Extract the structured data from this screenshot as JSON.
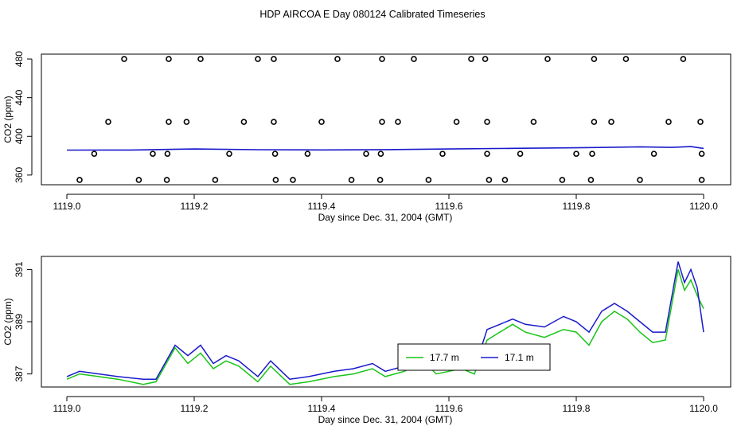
{
  "figure": {
    "title": "HDP AIRCOA E  Day 080124  Calibrated Timeseries"
  },
  "chart_data": [
    {
      "type": "scatter",
      "xlabel": "Day since Dec. 31, 2004 (GMT)",
      "ylabel": "CO2 (ppm)",
      "xlim": [
        1119.0,
        1120.0
      ],
      "ylim": [
        350,
        485
      ],
      "xticks": [
        "1119.0",
        "1119.2",
        "1119.4",
        "1119.6",
        "1119.8",
        "1120.0"
      ],
      "yticks": [
        "360",
        "400",
        "440",
        "480"
      ],
      "colors": {
        "line": "#1a1acc",
        "points": "#000000"
      },
      "series": [
        {
          "style": "points",
          "x": [
            1119.09,
            1119.16,
            1119.21,
            1119.3,
            1119.325,
            1119.425,
            1119.495,
            1119.545,
            1119.635,
            1119.657,
            1119.755,
            1119.828,
            1119.878,
            1119.968,
            1119.065,
            1119.16,
            1119.188,
            1119.278,
            1119.325,
            1119.4,
            1119.495,
            1119.52,
            1119.612,
            1119.66,
            1119.733,
            1119.828,
            1119.855,
            1119.945,
            1119.995,
            1119.043,
            1119.135,
            1119.158,
            1119.255,
            1119.327,
            1119.378,
            1119.47,
            1119.493,
            1119.59,
            1119.66,
            1119.712,
            1119.8,
            1119.825,
            1119.922,
            1119.997,
            1119.02,
            1119.113,
            1119.157,
            1119.233,
            1119.328,
            1119.355,
            1119.447,
            1119.492,
            1119.568,
            1119.663,
            1119.688,
            1119.778,
            1119.823,
            1119.9,
            1119.997
          ],
          "y": [
            480,
            480,
            480,
            480,
            480,
            480,
            480,
            480,
            480,
            480,
            480,
            480,
            480,
            480,
            415,
            415,
            415,
            415,
            415,
            415,
            415,
            415,
            415,
            415,
            415,
            415,
            415,
            415,
            415,
            382,
            382,
            382,
            382,
            382,
            382,
            382,
            382,
            382,
            382,
            382,
            382,
            382,
            382,
            382,
            355,
            355,
            355,
            355,
            355,
            355,
            355,
            355,
            355,
            355,
            355,
            355,
            355,
            355,
            355
          ]
        },
        {
          "style": "line",
          "x": [
            1119.0,
            1119.1,
            1119.2,
            1119.3,
            1119.4,
            1119.5,
            1119.6,
            1119.7,
            1119.8,
            1119.9,
            1119.95,
            1119.98,
            1120.0
          ],
          "y": [
            385.8,
            385.9,
            387.0,
            386.2,
            386.0,
            386.3,
            387.0,
            387.6,
            388.2,
            389.2,
            388.6,
            389.4,
            387.5
          ]
        }
      ]
    },
    {
      "type": "line",
      "xlabel": "Day since Dec. 31, 2004 (GMT)",
      "ylabel": "CO2 (ppm)",
      "xlim": [
        1119.0,
        1120.0
      ],
      "ylim": [
        386.5,
        391.5
      ],
      "xticks": [
        "1119.0",
        "1119.2",
        "1119.4",
        "1119.6",
        "1119.8",
        "1120.0"
      ],
      "yticks": [
        "387",
        "389",
        "391"
      ],
      "legend": {
        "placement": "center-bottom",
        "entries": [
          "17.7 m",
          "17.1 m"
        ]
      },
      "colors": {
        "series_a": "#18c418",
        "series_b": "#1a1acc"
      },
      "series": [
        {
          "name": "17.7 m",
          "x": [
            1119.0,
            1119.02,
            1119.05,
            1119.08,
            1119.12,
            1119.14,
            1119.17,
            1119.19,
            1119.21,
            1119.23,
            1119.25,
            1119.27,
            1119.3,
            1119.32,
            1119.35,
            1119.38,
            1119.42,
            1119.45,
            1119.48,
            1119.5,
            1119.53,
            1119.56,
            1119.58,
            1119.6,
            1119.62,
            1119.64,
            1119.66,
            1119.68,
            1119.7,
            1119.72,
            1119.75,
            1119.78,
            1119.8,
            1119.82,
            1119.84,
            1119.86,
            1119.88,
            1119.9,
            1119.92,
            1119.94,
            1119.96,
            1119.97,
            1119.98,
            1119.99,
            1120.0
          ],
          "y": [
            386.8,
            387.0,
            386.9,
            386.8,
            386.6,
            386.7,
            388.0,
            387.4,
            387.8,
            387.2,
            387.5,
            387.3,
            386.7,
            387.3,
            386.6,
            386.7,
            386.9,
            387.0,
            387.2,
            386.9,
            387.1,
            387.5,
            387.0,
            387.1,
            387.2,
            387.0,
            388.3,
            388.6,
            388.9,
            388.6,
            388.4,
            388.7,
            388.6,
            388.1,
            389.0,
            389.4,
            389.1,
            388.6,
            388.2,
            388.3,
            391.0,
            390.2,
            390.6,
            390.0,
            389.5
          ]
        },
        {
          "name": "17.1 m",
          "x": [
            1119.0,
            1119.02,
            1119.05,
            1119.08,
            1119.12,
            1119.14,
            1119.17,
            1119.19,
            1119.21,
            1119.23,
            1119.25,
            1119.27,
            1119.3,
            1119.32,
            1119.35,
            1119.38,
            1119.42,
            1119.45,
            1119.48,
            1119.5,
            1119.53,
            1119.56,
            1119.58,
            1119.6,
            1119.62,
            1119.64,
            1119.66,
            1119.68,
            1119.7,
            1119.72,
            1119.75,
            1119.78,
            1119.8,
            1119.82,
            1119.84,
            1119.86,
            1119.88,
            1119.9,
            1119.92,
            1119.94,
            1119.96,
            1119.97,
            1119.98,
            1119.99,
            1120.0
          ],
          "y": [
            386.9,
            387.1,
            387.0,
            386.9,
            386.8,
            386.8,
            388.1,
            387.7,
            388.1,
            387.4,
            387.7,
            387.5,
            386.9,
            387.5,
            386.8,
            386.9,
            387.1,
            387.2,
            387.4,
            387.1,
            387.3,
            388.1,
            387.3,
            387.4,
            387.5,
            387.2,
            388.7,
            388.9,
            389.1,
            388.9,
            388.8,
            389.2,
            389.0,
            388.6,
            389.4,
            389.7,
            389.4,
            389.0,
            388.6,
            388.6,
            391.3,
            390.5,
            391.0,
            390.3,
            388.6
          ]
        }
      ]
    }
  ]
}
